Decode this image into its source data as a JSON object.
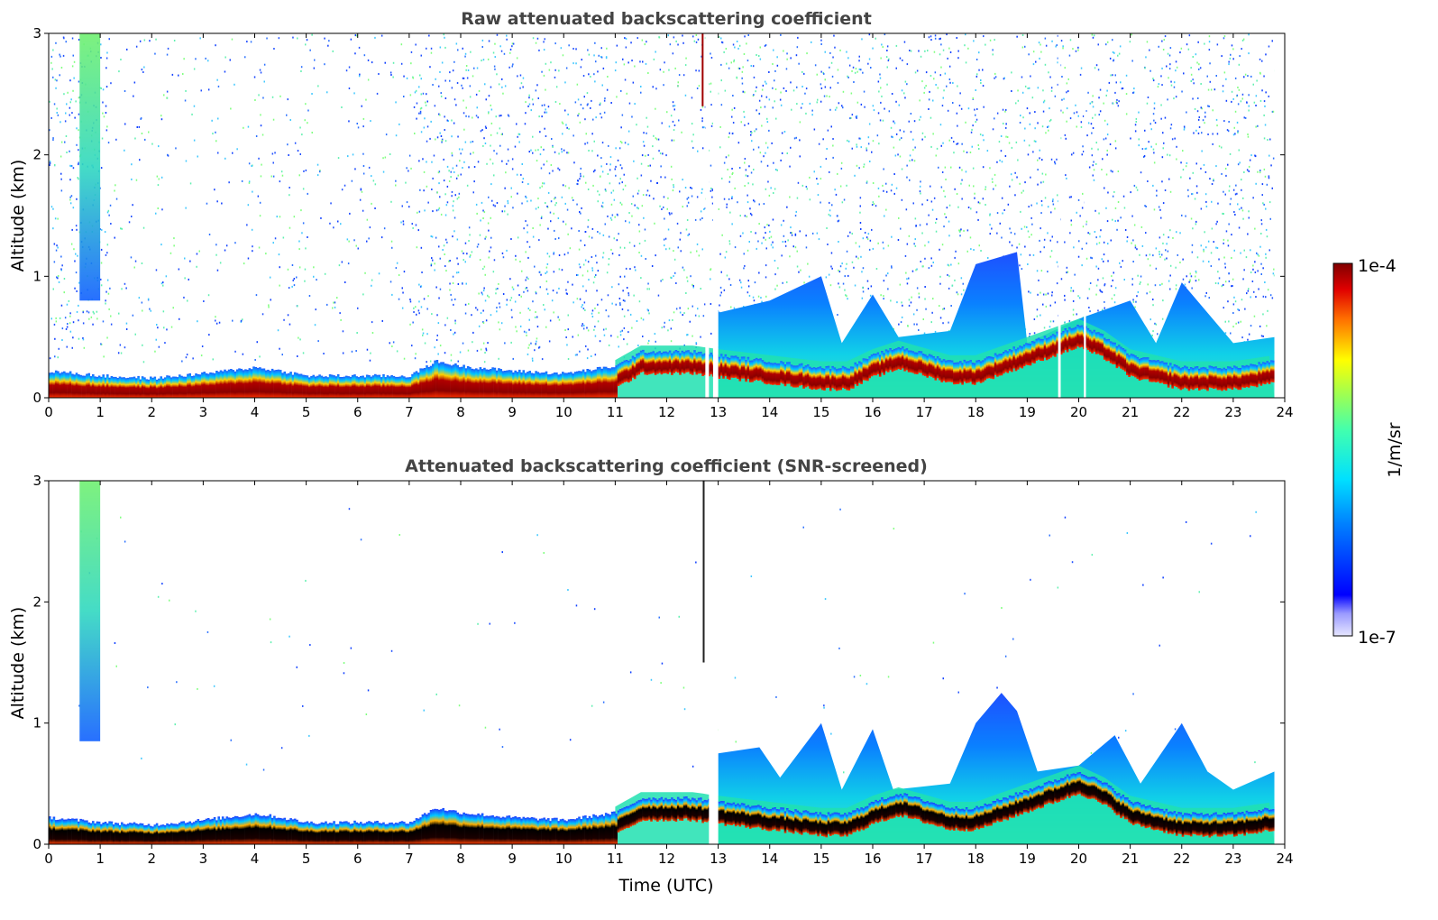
{
  "chart_data": [
    {
      "type": "heatmap",
      "title": "Raw attenuated backscattering coefficient",
      "ylabel": "Altitude (km)",
      "xlabel": "",
      "xlim": [
        0,
        24
      ],
      "ylim": [
        0,
        3
      ],
      "x_ticks": [
        "0",
        "1",
        "2",
        "3",
        "4",
        "5",
        "6",
        "7",
        "8",
        "9",
        "10",
        "11",
        "12",
        "13",
        "14",
        "15",
        "16",
        "17",
        "18",
        "19",
        "20",
        "21",
        "22",
        "23",
        "24"
      ],
      "y_ticks": [
        "0",
        "1",
        "2",
        "3"
      ],
      "layer_top_km": [
        [
          0,
          0.22
        ],
        [
          1,
          0.18
        ],
        [
          2,
          0.16
        ],
        [
          3,
          0.2
        ],
        [
          4,
          0.25
        ],
        [
          4.5,
          0.22
        ],
        [
          5,
          0.18
        ],
        [
          6,
          0.18
        ],
        [
          7,
          0.18
        ],
        [
          7.5,
          0.3
        ],
        [
          8,
          0.26
        ],
        [
          9,
          0.22
        ],
        [
          10,
          0.2
        ],
        [
          11,
          0.26
        ],
        [
          11.5,
          0.38
        ],
        [
          12.5,
          0.38
        ],
        [
          13,
          0.35
        ],
        [
          14,
          0.3
        ],
        [
          15,
          0.25
        ],
        [
          15.5,
          0.25
        ],
        [
          16,
          0.35
        ],
        [
          16.5,
          0.42
        ],
        [
          17.5,
          0.3
        ],
        [
          18,
          0.3
        ],
        [
          19,
          0.45
        ],
        [
          20,
          0.6
        ],
        [
          20.5,
          0.5
        ],
        [
          21,
          0.35
        ],
        [
          22,
          0.25
        ],
        [
          23,
          0.25
        ],
        [
          23.8,
          0.3
        ]
      ],
      "mixed_layer_top_km": [
        [
          13,
          0.7
        ],
        [
          14,
          0.8
        ],
        [
          15,
          1.0
        ],
        [
          15.4,
          0.45
        ],
        [
          16,
          0.85
        ],
        [
          16.5,
          0.5
        ],
        [
          17.5,
          0.55
        ],
        [
          18,
          1.1
        ],
        [
          18.8,
          1.2
        ],
        [
          19,
          0.45
        ],
        [
          20,
          0.65
        ],
        [
          21,
          0.8
        ],
        [
          21.5,
          0.45
        ],
        [
          22,
          0.95
        ],
        [
          23,
          0.45
        ],
        [
          23.8,
          0.5
        ]
      ],
      "features": [
        {
          "label": "aerosol plume",
          "x_range": [
            0.6,
            1.0
          ],
          "y_range": [
            0.8,
            3.0
          ]
        },
        {
          "label": "data gap",
          "x_range": [
            12.7,
            13.0
          ],
          "y_range": [
            0,
            3.0
          ]
        }
      ]
    },
    {
      "type": "heatmap",
      "title": "Attenuated backscattering coefficient (SNR-screened)",
      "ylabel": "Altitude (km)",
      "xlabel": "Time (UTC)",
      "xlim": [
        0,
        24
      ],
      "ylim": [
        0,
        3
      ],
      "x_ticks": [
        "0",
        "1",
        "2",
        "3",
        "4",
        "5",
        "6",
        "7",
        "8",
        "9",
        "10",
        "11",
        "12",
        "13",
        "14",
        "15",
        "16",
        "17",
        "18",
        "19",
        "20",
        "21",
        "22",
        "23",
        "24"
      ],
      "y_ticks": [
        "0",
        "1",
        "2",
        "3"
      ],
      "layer_top_km": [
        [
          0,
          0.22
        ],
        [
          1,
          0.18
        ],
        [
          2,
          0.16
        ],
        [
          3,
          0.2
        ],
        [
          4,
          0.25
        ],
        [
          4.5,
          0.22
        ],
        [
          5,
          0.18
        ],
        [
          6,
          0.18
        ],
        [
          7,
          0.18
        ],
        [
          7.5,
          0.3
        ],
        [
          8,
          0.26
        ],
        [
          9,
          0.22
        ],
        [
          10,
          0.2
        ],
        [
          11,
          0.26
        ],
        [
          11.5,
          0.38
        ],
        [
          12.5,
          0.38
        ],
        [
          13,
          0.35
        ],
        [
          14,
          0.3
        ],
        [
          15,
          0.25
        ],
        [
          15.5,
          0.25
        ],
        [
          16,
          0.35
        ],
        [
          16.5,
          0.42
        ],
        [
          17.5,
          0.3
        ],
        [
          18,
          0.3
        ],
        [
          19,
          0.45
        ],
        [
          20,
          0.6
        ],
        [
          20.5,
          0.5
        ],
        [
          21,
          0.35
        ],
        [
          22,
          0.25
        ],
        [
          23,
          0.25
        ],
        [
          23.8,
          0.3
        ]
      ],
      "mixed_layer_top_km": [
        [
          13,
          0.75
        ],
        [
          13.8,
          0.8
        ],
        [
          14.2,
          0.55
        ],
        [
          15,
          1.0
        ],
        [
          15.4,
          0.45
        ],
        [
          16,
          0.95
        ],
        [
          16.4,
          0.45
        ],
        [
          17.5,
          0.5
        ],
        [
          18,
          1.0
        ],
        [
          18.5,
          1.25
        ],
        [
          18.8,
          1.1
        ],
        [
          19.2,
          0.6
        ],
        [
          20,
          0.65
        ],
        [
          20.7,
          0.9
        ],
        [
          21.2,
          0.5
        ],
        [
          22,
          1.0
        ],
        [
          22.5,
          0.6
        ],
        [
          23,
          0.45
        ],
        [
          23.8,
          0.6
        ]
      ],
      "features": [
        {
          "label": "aerosol plume",
          "x_range": [
            0.6,
            1.0
          ],
          "y_range": [
            0.85,
            3.0
          ]
        },
        {
          "label": "spike",
          "x_range": [
            12.7,
            12.75
          ],
          "y_range": [
            1.5,
            3.0
          ]
        }
      ]
    }
  ],
  "colorbar": {
    "label": "1/m/sr",
    "max_label": "1e-4",
    "min_label": "1e-7",
    "colormap": "jet"
  }
}
